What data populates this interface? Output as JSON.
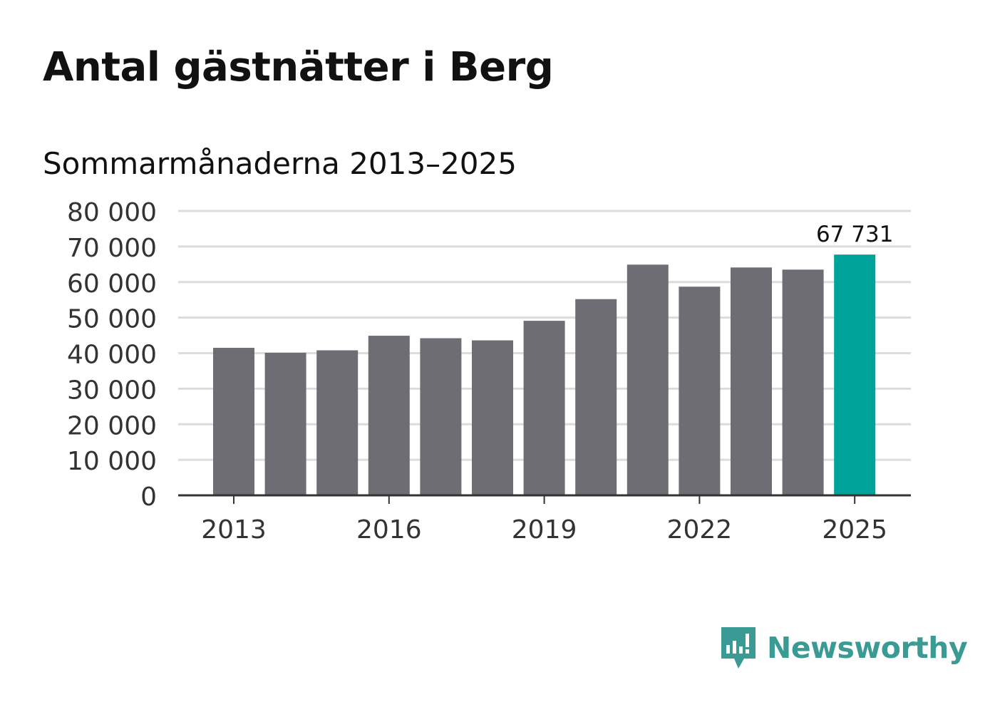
{
  "title": "Antal gästnätter i Berg",
  "subtitle": "Sommarmånaderna 2013–2025",
  "brand": {
    "name": "Newsworthy",
    "icon": "newsworthy-logo-icon",
    "color": "#3a9a94"
  },
  "colors": {
    "bar": "#6e6d74",
    "highlight": "#00a39a",
    "grid": "#dcdcdc",
    "axis": "#333333"
  },
  "chart_data": {
    "type": "bar",
    "title": "Antal gästnätter i Berg",
    "subtitle": "Sommarmånaderna 2013–2025",
    "xlabel": "",
    "ylabel": "",
    "categories": [
      "2013",
      "2014",
      "2015",
      "2016",
      "2017",
      "2018",
      "2019",
      "2020",
      "2021",
      "2022",
      "2023",
      "2024",
      "2025"
    ],
    "values": [
      41500,
      40100,
      40800,
      44900,
      44200,
      43600,
      49100,
      55200,
      64900,
      58700,
      64100,
      63500,
      67731
    ],
    "ylim": [
      0,
      80000
    ],
    "yticks": [
      0,
      10000,
      20000,
      30000,
      40000,
      50000,
      60000,
      70000,
      80000
    ],
    "ytick_labels": [
      "0",
      "10 000",
      "20 000",
      "30 000",
      "40 000",
      "50 000",
      "60 000",
      "70 000",
      "80 000"
    ],
    "xtick_labels": [
      "2013",
      "2016",
      "2019",
      "2022",
      "2025"
    ],
    "highlight_category": "2025",
    "data_labels": [
      {
        "category": "2025",
        "text": "67 731"
      }
    ],
    "grid": true,
    "legend": "none"
  }
}
